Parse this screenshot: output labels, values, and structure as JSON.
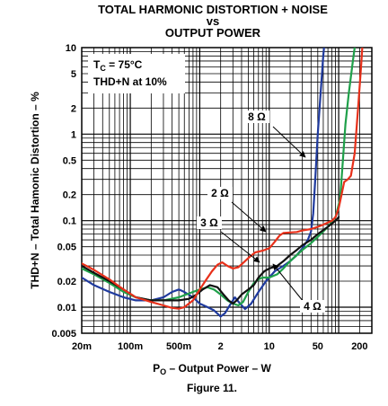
{
  "chart_data": {
    "type": "line",
    "title_lines": [
      "TOTAL HARMONIC DISTORTION + NOISE",
      "vs",
      "OUTPUT POWER"
    ],
    "xlabel_main": "P",
    "xlabel_sub": "O",
    "xlabel_rest": " – Output Power – W",
    "ylabel": "THD+N – Total Hamonic Distortion – %",
    "caption": "Figure 11.",
    "x_scale": "log",
    "y_scale": "log",
    "xlim": [
      0.02,
      300
    ],
    "ylim": [
      0.005,
      10
    ],
    "grid": true,
    "x_ticks": [
      {
        "v": 0.02,
        "label": "20m"
      },
      {
        "v": 0.1,
        "label": "100m"
      },
      {
        "v": 0.5,
        "label": "500m"
      },
      {
        "v": 2,
        "label": "2"
      },
      {
        "v": 10,
        "label": "10"
      },
      {
        "v": 50,
        "label": "50"
      },
      {
        "v": 200,
        "label": "200"
      }
    ],
    "y_ticks": [
      {
        "v": 10,
        "label": "10"
      },
      {
        "v": 5,
        "label": "5"
      },
      {
        "v": 2,
        "label": "2"
      },
      {
        "v": 1,
        "label": "1"
      },
      {
        "v": 0.5,
        "label": "0.5"
      },
      {
        "v": 0.2,
        "label": "0.2"
      },
      {
        "v": 0.1,
        "label": "0.1"
      },
      {
        "v": 0.05,
        "label": "0.05"
      },
      {
        "v": 0.02,
        "label": "0.02"
      },
      {
        "v": 0.01,
        "label": "0.01"
      },
      {
        "v": 0.005,
        "label": "0.005"
      }
    ],
    "conditions": {
      "line1_main": "T",
      "line1_sub": "C",
      "line1_rest": " = 75°C",
      "line2": "THD+N at 10%"
    },
    "series": [
      {
        "name": "8 Ω",
        "color": "#1f3a9e",
        "points": [
          [
            0.02,
            0.022
          ],
          [
            0.03,
            0.018
          ],
          [
            0.05,
            0.015
          ],
          [
            0.08,
            0.013
          ],
          [
            0.12,
            0.012
          ],
          [
            0.2,
            0.012
          ],
          [
            0.3,
            0.013
          ],
          [
            0.4,
            0.015
          ],
          [
            0.5,
            0.016
          ],
          [
            0.6,
            0.015
          ],
          [
            0.8,
            0.013
          ],
          [
            1.0,
            0.011
          ],
          [
            1.3,
            0.01
          ],
          [
            1.6,
            0.0092
          ],
          [
            2.0,
            0.0078
          ],
          [
            2.3,
            0.0085
          ],
          [
            2.7,
            0.0105
          ],
          [
            3.2,
            0.013
          ],
          [
            3.8,
            0.011
          ],
          [
            4.5,
            0.0095
          ],
          [
            5.5,
            0.011
          ],
          [
            7,
            0.015
          ],
          [
            9,
            0.02
          ],
          [
            12,
            0.026
          ],
          [
            16,
            0.03
          ],
          [
            20,
            0.034
          ],
          [
            25,
            0.04
          ],
          [
            30,
            0.048
          ],
          [
            36,
            0.06
          ],
          [
            40,
            0.075
          ],
          [
            43,
            0.12
          ],
          [
            46,
            0.3
          ],
          [
            50,
            1.0
          ],
          [
            55,
            3.0
          ],
          [
            60,
            8.0
          ],
          [
            64,
            14.0
          ]
        ]
      },
      {
        "name": "4 Ω",
        "color": "#1fa04a",
        "points": [
          [
            0.02,
            0.028
          ],
          [
            0.03,
            0.024
          ],
          [
            0.05,
            0.019
          ],
          [
            0.08,
            0.015
          ],
          [
            0.12,
            0.013
          ],
          [
            0.2,
            0.012
          ],
          [
            0.3,
            0.012
          ],
          [
            0.5,
            0.013
          ],
          [
            0.8,
            0.015
          ],
          [
            1.0,
            0.016
          ],
          [
            1.3,
            0.017
          ],
          [
            1.6,
            0.016
          ],
          [
            2.0,
            0.014
          ],
          [
            2.5,
            0.012
          ],
          [
            3.0,
            0.011
          ],
          [
            3.6,
            0.0105
          ],
          [
            4.2,
            0.0115
          ],
          [
            5,
            0.015
          ],
          [
            6,
            0.019
          ],
          [
            7,
            0.021
          ],
          [
            8,
            0.022
          ],
          [
            10,
            0.022
          ],
          [
            13,
            0.024
          ],
          [
            16,
            0.028
          ],
          [
            20,
            0.034
          ],
          [
            25,
            0.04
          ],
          [
            30,
            0.046
          ],
          [
            40,
            0.055
          ],
          [
            50,
            0.065
          ],
          [
            70,
            0.085
          ],
          [
            90,
            0.11
          ],
          [
            105,
            0.18
          ],
          [
            115,
            0.5
          ],
          [
            125,
            1.3
          ],
          [
            140,
            3.0
          ],
          [
            160,
            7.0
          ],
          [
            180,
            14.0
          ]
        ]
      },
      {
        "name": "3 Ω",
        "color": "#111111",
        "points": [
          [
            0.02,
            0.03
          ],
          [
            0.03,
            0.025
          ],
          [
            0.05,
            0.02
          ],
          [
            0.08,
            0.016
          ],
          [
            0.12,
            0.013
          ],
          [
            0.2,
            0.012
          ],
          [
            0.3,
            0.012
          ],
          [
            0.5,
            0.012
          ],
          [
            0.7,
            0.0125
          ],
          [
            0.9,
            0.014
          ],
          [
            1.1,
            0.016
          ],
          [
            1.4,
            0.018
          ],
          [
            1.8,
            0.017
          ],
          [
            2.2,
            0.014
          ],
          [
            2.6,
            0.012
          ],
          [
            3.0,
            0.011
          ],
          [
            3.4,
            0.012
          ],
          [
            4.0,
            0.014
          ],
          [
            5.0,
            0.016
          ],
          [
            6.0,
            0.018
          ],
          [
            7.0,
            0.022
          ],
          [
            8.5,
            0.026
          ],
          [
            10,
            0.028
          ],
          [
            13,
            0.03
          ],
          [
            16,
            0.034
          ],
          [
            20,
            0.04
          ],
          [
            25,
            0.046
          ],
          [
            30,
            0.052
          ],
          [
            40,
            0.06
          ],
          [
            50,
            0.07
          ],
          [
            70,
            0.085
          ],
          [
            90,
            0.1
          ],
          [
            100,
            0.11
          ]
        ]
      },
      {
        "name": "2 Ω",
        "color": "#e8301a",
        "points": [
          [
            0.02,
            0.032
          ],
          [
            0.03,
            0.027
          ],
          [
            0.05,
            0.021
          ],
          [
            0.08,
            0.016
          ],
          [
            0.12,
            0.013
          ],
          [
            0.2,
            0.0115
          ],
          [
            0.3,
            0.0105
          ],
          [
            0.4,
            0.0098
          ],
          [
            0.5,
            0.0096
          ],
          [
            0.6,
            0.01
          ],
          [
            0.8,
            0.012
          ],
          [
            1.0,
            0.016
          ],
          [
            1.2,
            0.02
          ],
          [
            1.5,
            0.026
          ],
          [
            1.8,
            0.031
          ],
          [
            2.1,
            0.033
          ],
          [
            2.5,
            0.03
          ],
          [
            3.0,
            0.028
          ],
          [
            3.6,
            0.029
          ],
          [
            4.3,
            0.033
          ],
          [
            5.2,
            0.038
          ],
          [
            6.3,
            0.043
          ],
          [
            8,
            0.045
          ],
          [
            10,
            0.048
          ],
          [
            12,
            0.057
          ],
          [
            14,
            0.067
          ],
          [
            16,
            0.072
          ],
          [
            20,
            0.073
          ],
          [
            25,
            0.074
          ],
          [
            30,
            0.077
          ],
          [
            40,
            0.08
          ],
          [
            50,
            0.085
          ],
          [
            60,
            0.09
          ],
          [
            70,
            0.095
          ],
          [
            80,
            0.1
          ],
          [
            90,
            0.11
          ],
          [
            100,
            0.14
          ],
          [
            110,
            0.2
          ],
          [
            120,
            0.28
          ],
          [
            135,
            0.3
          ],
          [
            150,
            0.33
          ],
          [
            170,
            0.6
          ],
          [
            190,
            2.0
          ],
          [
            210,
            6.0
          ],
          [
            225,
            14.0
          ]
        ]
      }
    ],
    "annotations": [
      {
        "label": "8 Ω",
        "series": "8 Ω"
      },
      {
        "label": "2 Ω",
        "series": "2 Ω"
      },
      {
        "label": "3 Ω",
        "series": "3 Ω"
      },
      {
        "label": "4 Ω",
        "series": "4 Ω"
      }
    ]
  }
}
